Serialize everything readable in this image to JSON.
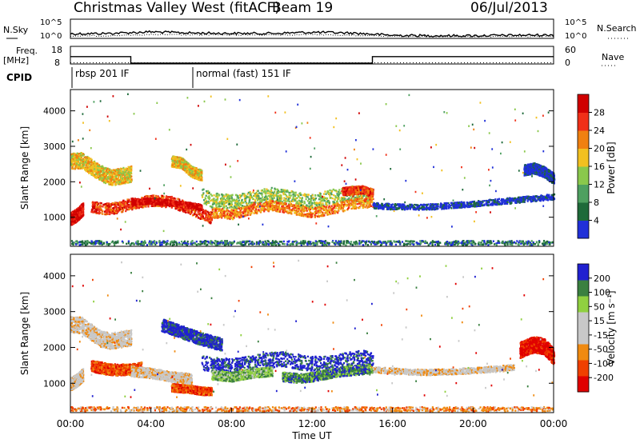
{
  "header": {
    "title": "Christmas Valley West (fitACF)",
    "beam": "Beam 19",
    "date": "06/Jul/2013"
  },
  "colors": {
    "power_scale": [
      "#2030d8",
      "#1e6a3a",
      "#4ea060",
      "#8ac84c",
      "#f2c020",
      "#f08010",
      "#f03018",
      "#d00000"
    ],
    "velocity_scale": [
      "#e00000",
      "#f04000",
      "#f08a10",
      "#c8c8c8",
      "#c8c8c8",
      "#90d040",
      "#3a8040",
      "#2020d0"
    ],
    "ground_scatter": "#c8c8c8"
  },
  "chart_data": [
    {
      "panel": "nsky-nsearch",
      "type": "line",
      "left_label": "N.Sky",
      "right_label": "N.Search",
      "left_ticks": [
        "10^5",
        "10^0"
      ],
      "right_ticks": [
        "10^5",
        "10^0"
      ],
      "series": [
        {
          "x": [
            0,
            2,
            4,
            6,
            8,
            10,
            12,
            14,
            16,
            18,
            20,
            22,
            24
          ],
          "y": [
            1.2,
            1.3,
            1.7,
            1.4,
            1.3,
            1.3,
            1.6,
            1.4,
            0.8,
            0.7,
            0.7,
            0.8,
            0.9
          ]
        },
        {
          "x": [
            0,
            2,
            4,
            6,
            8,
            10,
            12,
            14,
            16,
            18,
            20,
            22,
            24
          ],
          "y": [
            0.6,
            0.7,
            1.0,
            0.9,
            0.9,
            0.9,
            1.0,
            0.8,
            0.5,
            0.5,
            0.5,
            0.5,
            0.6
          ]
        }
      ]
    },
    {
      "panel": "freq-nave",
      "type": "line",
      "left_label": "Freq.",
      "left_unit": "[MHz]",
      "right_label": "Nave",
      "left_ticks": [
        "18",
        "8"
      ],
      "right_ticks": [
        "60",
        "0"
      ],
      "series": [
        {
          "x": [
            0,
            3,
            3,
            15,
            15,
            24
          ],
          "y": [
            14,
            14,
            9.5,
            9.5,
            14,
            14
          ]
        },
        {
          "x": [
            0,
            24
          ],
          "y": [
            10.5,
            10.5
          ]
        }
      ]
    },
    {
      "panel": "cpid",
      "type": "other",
      "label": "CPID",
      "segments": [
        {
          "start": 0,
          "end": 6,
          "text": "rbsp 201 IF"
        },
        {
          "start": 6,
          "end": 24,
          "text": "normal (fast) 151 IF"
        }
      ]
    },
    {
      "panel": "power",
      "type": "scatter",
      "ylabel": "Slant Range [km]",
      "ylim": [
        180,
        4600
      ],
      "yticks": [
        1000,
        2000,
        3000,
        4000
      ],
      "xlim": [
        0,
        24
      ],
      "grid": false,
      "colorbar_label": "Power [dB]",
      "colorbar_ticks": [
        "4",
        "8",
        "12",
        "16",
        "20",
        "24",
        "28"
      ],
      "bands": [
        {
          "x": [
            0.0,
            0.5,
            1.0,
            1.5,
            2.0,
            2.5,
            3.0
          ],
          "y": [
            2600,
            2620,
            2450,
            2250,
            2150,
            2180,
            2250
          ],
          "width": 450,
          "level": 4
        },
        {
          "x": [
            0.0,
            0.3,
            0.6
          ],
          "y": [
            980,
            1080,
            1250
          ],
          "width": 350,
          "level": 7
        },
        {
          "x": [
            1.0,
            2.0,
            3.0,
            4.0,
            5.0,
            6.0,
            6.5,
            7.0
          ],
          "y": [
            1300,
            1250,
            1400,
            1500,
            1450,
            1250,
            1100,
            1000
          ],
          "width": 320,
          "level": 6
        },
        {
          "x": [
            3.0,
            4.0,
            5.0,
            6.0,
            6.5
          ],
          "y": [
            1450,
            1480,
            1420,
            1350,
            1300
          ],
          "width": 160,
          "level": 7
        },
        {
          "x": [
            5.0,
            5.5,
            6.0,
            6.5
          ],
          "y": [
            2600,
            2550,
            2300,
            2200
          ],
          "width": 300,
          "level": 4
        },
        {
          "x": [
            6.5,
            7.0,
            8.0,
            9.0,
            10.0,
            11.0,
            12.0,
            13.0,
            14.0,
            15.0
          ],
          "y": [
            1650,
            1500,
            1450,
            1550,
            1650,
            1550,
            1450,
            1600,
            1700,
            1600
          ],
          "width": 420,
          "level": 3
        },
        {
          "x": [
            7.0,
            8.0,
            9.0,
            10.0,
            11.0,
            12.0,
            13.0,
            14.0,
            15.0
          ],
          "y": [
            1150,
            1100,
            1250,
            1350,
            1250,
            1150,
            1250,
            1400,
            1450
          ],
          "width": 280,
          "level": 5
        },
        {
          "x": [
            13.5,
            14.5,
            15.0
          ],
          "y": [
            1750,
            1800,
            1700
          ],
          "width": 220,
          "level": 6
        },
        {
          "x": [
            15.0,
            16.0,
            17.0,
            18.0,
            19.0,
            20.0,
            21.0,
            22.0,
            23.0,
            24.0
          ],
          "y": [
            1350,
            1320,
            1300,
            1320,
            1360,
            1400,
            1450,
            1500,
            1550,
            1600
          ],
          "width": 160,
          "level": 0
        },
        {
          "x": [
            22.5,
            23.0,
            23.5,
            24.0
          ],
          "y": [
            2350,
            2400,
            2300,
            2100
          ],
          "width": 300,
          "level": 0
        },
        {
          "x": [
            0,
            2,
            4,
            6,
            8,
            10,
            12,
            14,
            16,
            18,
            20,
            22,
            24
          ],
          "y": [
            300,
            300,
            300,
            300,
            300,
            300,
            300,
            300,
            300,
            300,
            300,
            300,
            300
          ],
          "width": 120,
          "level": 1
        }
      ]
    },
    {
      "panel": "velocity",
      "type": "scatter",
      "ylabel": "Slant Range [km]",
      "ylim": [
        180,
        4600
      ],
      "yticks": [
        1000,
        2000,
        3000,
        4000
      ],
      "xlim": [
        0,
        24
      ],
      "xlabel": "Time UT",
      "xticks": [
        "00:00",
        "04:00",
        "08:00",
        "12:00",
        "16:00",
        "20:00",
        "00:00"
      ],
      "grid": false,
      "colorbar_label": "Velocity [m s⁻¹]",
      "colorbar_ticks": [
        "-200",
        "-100",
        "-50",
        "-15",
        "15",
        "50",
        "100",
        "200"
      ],
      "bands": [
        {
          "x": [
            0.0,
            0.5,
            1.0,
            1.5,
            2.0,
            2.5,
            3.0
          ],
          "y": [
            2650,
            2650,
            2450,
            2250,
            2200,
            2250,
            2300
          ],
          "width": 450,
          "level": 3
        },
        {
          "x": [
            0.0,
            0.3,
            0.6
          ],
          "y": [
            1000,
            1100,
            1250
          ],
          "width": 350,
          "level": 3
        },
        {
          "x": [
            1.0,
            2.0,
            3.0,
            3.5
          ],
          "y": [
            1500,
            1400,
            1400,
            1450
          ],
          "width": 320,
          "level": 1
        },
        {
          "x": [
            3.0,
            4.0,
            5.0,
            6.0
          ],
          "y": [
            1350,
            1300,
            1200,
            1150
          ],
          "width": 280,
          "level": 3
        },
        {
          "x": [
            5.0,
            6.0,
            6.5,
            7.0
          ],
          "y": [
            900,
            850,
            800,
            800
          ],
          "width": 220,
          "level": 1
        },
        {
          "x": [
            4.5,
            5.5,
            6.5,
            7.5
          ],
          "y": [
            2650,
            2450,
            2250,
            2100
          ],
          "width": 350,
          "level": 7
        },
        {
          "x": [
            6.5,
            7.5,
            8.5,
            9.5,
            10.5,
            11.5,
            12.5,
            13.5,
            14.5,
            15.0
          ],
          "y": [
            1600,
            1500,
            1550,
            1650,
            1700,
            1600,
            1550,
            1650,
            1750,
            1650
          ],
          "width": 420,
          "level": 7
        },
        {
          "x": [
            7.0,
            8.0,
            9.0,
            10.0
          ],
          "y": [
            1250,
            1200,
            1300,
            1350
          ],
          "width": 260,
          "level": 5
        },
        {
          "x": [
            10.5,
            11.5,
            12.5,
            13.5,
            14.5,
            15.0
          ],
          "y": [
            1200,
            1150,
            1250,
            1350,
            1400,
            1450
          ],
          "width": 260,
          "level": 6
        },
        {
          "x": [
            15.0,
            16.0,
            17.0,
            18.0,
            19.0,
            20.0,
            21.0,
            22.0
          ],
          "y": [
            1400,
            1370,
            1330,
            1330,
            1350,
            1380,
            1420,
            1460
          ],
          "width": 160,
          "level": 3
        },
        {
          "x": [
            22.3,
            23.0,
            23.5,
            24.0
          ],
          "y": [
            1950,
            2100,
            2050,
            1750
          ],
          "width": 450,
          "level": 0
        },
        {
          "x": [
            0,
            2,
            4,
            6,
            8,
            10,
            12,
            14,
            16,
            18,
            20,
            22,
            24
          ],
          "y": [
            300,
            300,
            300,
            300,
            300,
            300,
            300,
            300,
            300,
            300,
            300,
            300,
            300
          ],
          "width": 120,
          "level": 2
        }
      ]
    }
  ]
}
